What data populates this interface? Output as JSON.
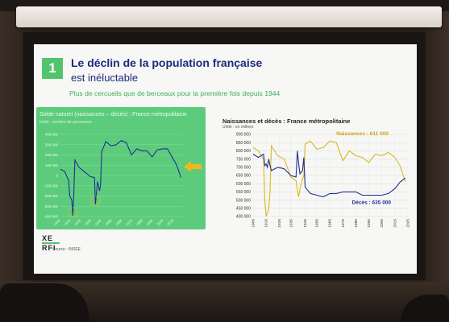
{
  "slide": {
    "number": "1",
    "title": "Le déclin de la population française",
    "title_line2": "est inéluctable",
    "tagline": "Plus de cercueils que de berceaux pour la première fois depuis 1944",
    "source": "Source : INSEE",
    "logo_line1": "XE",
    "logo_line2": "RFI"
  },
  "left_chart": {
    "title": "Solde naturel (naissances – décès) : France métropolitaine",
    "unit": "Unité : nombre de personnes"
  },
  "right_chart": {
    "title": "Naissances et décès : France métropolitaine",
    "unit": "Unité : en milliers",
    "annotation_births": "Naissances : 611 000",
    "annotation_deaths": "Décès : 635 000"
  },
  "colors": {
    "green": "#52c46e",
    "navy": "#1e2a7a",
    "births": "#d9b81e",
    "deaths": "#1f2f95",
    "arrow": "#f2b620"
  },
  "chart_data": [
    {
      "type": "line",
      "title": "Solde naturel (naissances – décès) : France métropolitaine",
      "ylabel": "Unité : nombre de personnes",
      "x": [
        1906,
        1910,
        1914,
        1915,
        1917,
        1918,
        1919,
        1920,
        1924,
        1930,
        1935,
        1939,
        1940,
        1942,
        1944,
        1945,
        1946,
        1950,
        1955,
        1960,
        1965,
        1970,
        1975,
        1980,
        1985,
        1990,
        1995,
        2000,
        2005,
        2010,
        2015,
        2019,
        2023
      ],
      "y_tick_labels": [
        "400 000",
        "300 000",
        "200 000",
        "100 000",
        "0",
        "-100 000",
        "-200 000",
        "-300 000",
        "-400 000"
      ],
      "ylim": [
        -400000,
        400000
      ],
      "series": [
        {
          "values": [
            60000,
            40000,
            -50000,
            -200000,
            -240000,
            -390000,
            -170000,
            150000,
            80000,
            30000,
            -10000,
            -20000,
            -280000,
            -60000,
            -150000,
            -90000,
            230000,
            330000,
            290000,
            300000,
            340000,
            320000,
            200000,
            260000,
            240000,
            240000,
            180000,
            250000,
            260000,
            260000,
            170000,
            100000,
            -20000
          ]
        }
      ]
    },
    {
      "type": "line",
      "title": "Naissances et décès : France métropolitaine",
      "ylabel": "Unité : en milliers",
      "ylim": [
        400000,
        900000
      ],
      "x": [
        1906,
        1910,
        1914,
        1915,
        1916,
        1917,
        1918,
        1919,
        1920,
        1925,
        1930,
        1935,
        1939,
        1940,
        1941,
        1942,
        1944,
        1945,
        1946,
        1950,
        1955,
        1960,
        1965,
        1970,
        1975,
        1980,
        1985,
        1990,
        1995,
        2000,
        2005,
        2010,
        2015,
        2019,
        2023
      ],
      "x_tick_labels": [
        "1906",
        "1916",
        "1926",
        "1935",
        "1946",
        "1955",
        "1965",
        "1975",
        "1985",
        "1995",
        "2005",
        "2015",
        "2025"
      ],
      "y_tick_labels": [
        "900 000",
        "850 000",
        "800 000",
        "750 000",
        "700 000",
        "650 000",
        "600 000",
        "550 000",
        "500 000",
        "450 000",
        "400 000"
      ],
      "series": [
        {
          "name": "Naissances : 611 000",
          "values": [
            820000,
            800000,
            750000,
            500000,
            400000,
            420000,
            450000,
            550000,
            830000,
            770000,
            750000,
            640000,
            620000,
            560000,
            520000,
            570000,
            630000,
            650000,
            840000,
            860000,
            810000,
            820000,
            860000,
            850000,
            740000,
            800000,
            770000,
            760000,
            730000,
            780000,
            770000,
            790000,
            760000,
            710000,
            611000
          ]
        },
        {
          "name": "Décès : 635 000",
          "values": [
            780000,
            760000,
            780000,
            710000,
            720000,
            700000,
            750000,
            710000,
            680000,
            700000,
            690000,
            650000,
            640000,
            800000,
            720000,
            660000,
            680000,
            760000,
            580000,
            540000,
            530000,
            520000,
            540000,
            540000,
            550000,
            550000,
            550000,
            530000,
            530000,
            530000,
            530000,
            540000,
            570000,
            610000,
            635000
          ]
        }
      ]
    }
  ]
}
